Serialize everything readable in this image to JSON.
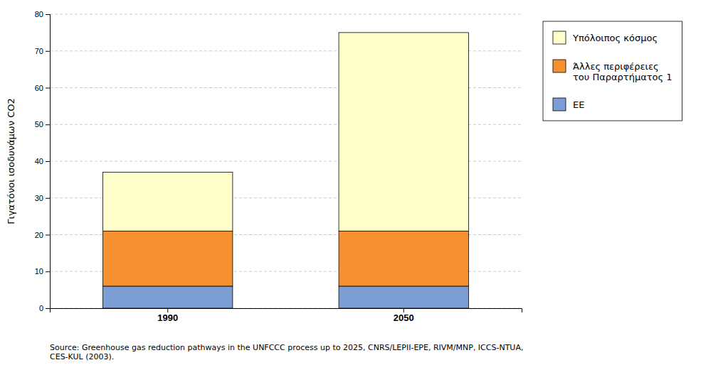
{
  "chart_data": {
    "type": "bar",
    "stacked": true,
    "categories": [
      "1990",
      "2050"
    ],
    "series": [
      {
        "name": "EE",
        "color": "#7b9fd4",
        "values": [
          6,
          6
        ]
      },
      {
        "name": "Άλλες περιφέρειες\nτου Παραρτήματος 1",
        "color": "#f5922f",
        "values": [
          15,
          15
        ]
      },
      {
        "name": "Υπόλοιπος κόσμος",
        "color": "#ffffcc",
        "values": [
          16,
          54
        ]
      }
    ],
    "ylabel": "Γιγατόνοι ισοδυνάμων CO2",
    "ylim": [
      0,
      80
    ],
    "yticks": [
      0,
      10,
      20,
      30,
      40,
      50,
      60,
      70,
      80
    ],
    "grid": true,
    "legend": "right",
    "annotations": [
      "Source: Greenhouse gas reduction pathways in the UNFCCC process up to 2025, CNRS/LEPII-EPE, RIVM/MNP, ICCS-NTUA,\nCES-KUL (2003)."
    ]
  }
}
